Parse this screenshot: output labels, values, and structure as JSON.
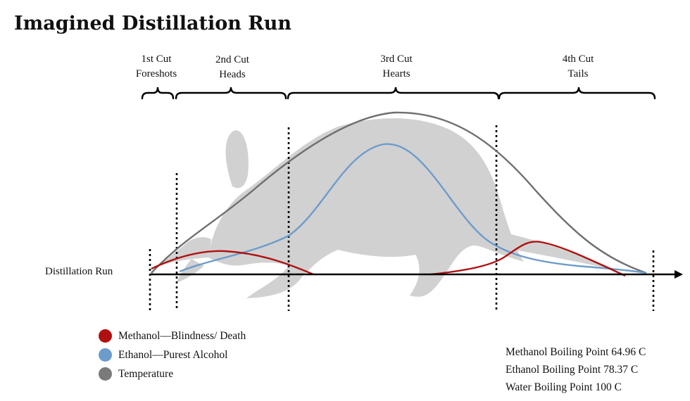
{
  "title": "Imagined Distillation Run",
  "cuts": [
    {
      "line1": "1st Cut",
      "line2": "Foreshots"
    },
    {
      "line1": "2nd Cut",
      "line2": "Heads"
    },
    {
      "line1": "3rd Cut",
      "line2": "Hearts"
    },
    {
      "line1": "4th Cut",
      "line2": "Tails"
    }
  ],
  "axis_label": "Distillation Run",
  "legend": [
    {
      "label": "Methanol—Blindness/ Death",
      "color": "#b01010"
    },
    {
      "label": "Ethanol—Purest Alcohol",
      "color": "#6c9ccb"
    },
    {
      "label": "Temperature",
      "color": "#7a7a7a"
    }
  ],
  "boiling_points": [
    "Methanol Boiling Point 64.96 C",
    "Ethanol Boiling Point 78.37 C",
    "Water Boiling Point 100 C"
  ],
  "colors": {
    "methanol": "#b01010",
    "ethanol": "#6c9ccb",
    "temperature": "#6f6f6f",
    "silhouette": "#c9c9c9",
    "axis": "#000000"
  },
  "background_image": "aardvark-silhouette"
}
